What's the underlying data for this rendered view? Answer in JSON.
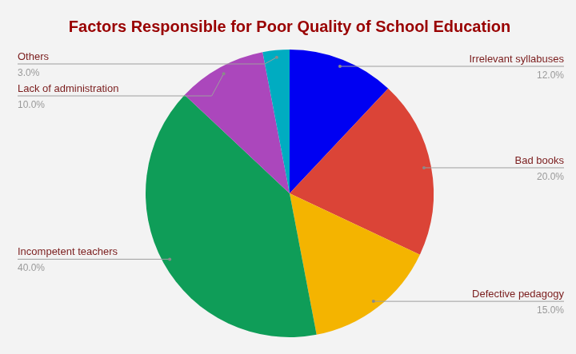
{
  "chart_data": {
    "type": "pie",
    "title": "Factors Responsible for Poor Quality of School Education",
    "categories": [
      "Irrelevant syllabuses",
      "Bad books",
      "Defective pedagogy",
      "Incompetent teachers",
      "Lack of administration",
      "Others"
    ],
    "values": [
      12,
      20,
      15,
      40,
      10,
      3
    ],
    "value_labels": [
      "12.0%",
      "20.0%",
      "15.0%",
      "40.0%",
      "10.0%",
      "3.0%"
    ],
    "colors": [
      "#0000f2",
      "#db4437",
      "#f4b400",
      "#0f9d58",
      "#ab47bc",
      "#00acc1"
    ],
    "data_labels": true
  }
}
